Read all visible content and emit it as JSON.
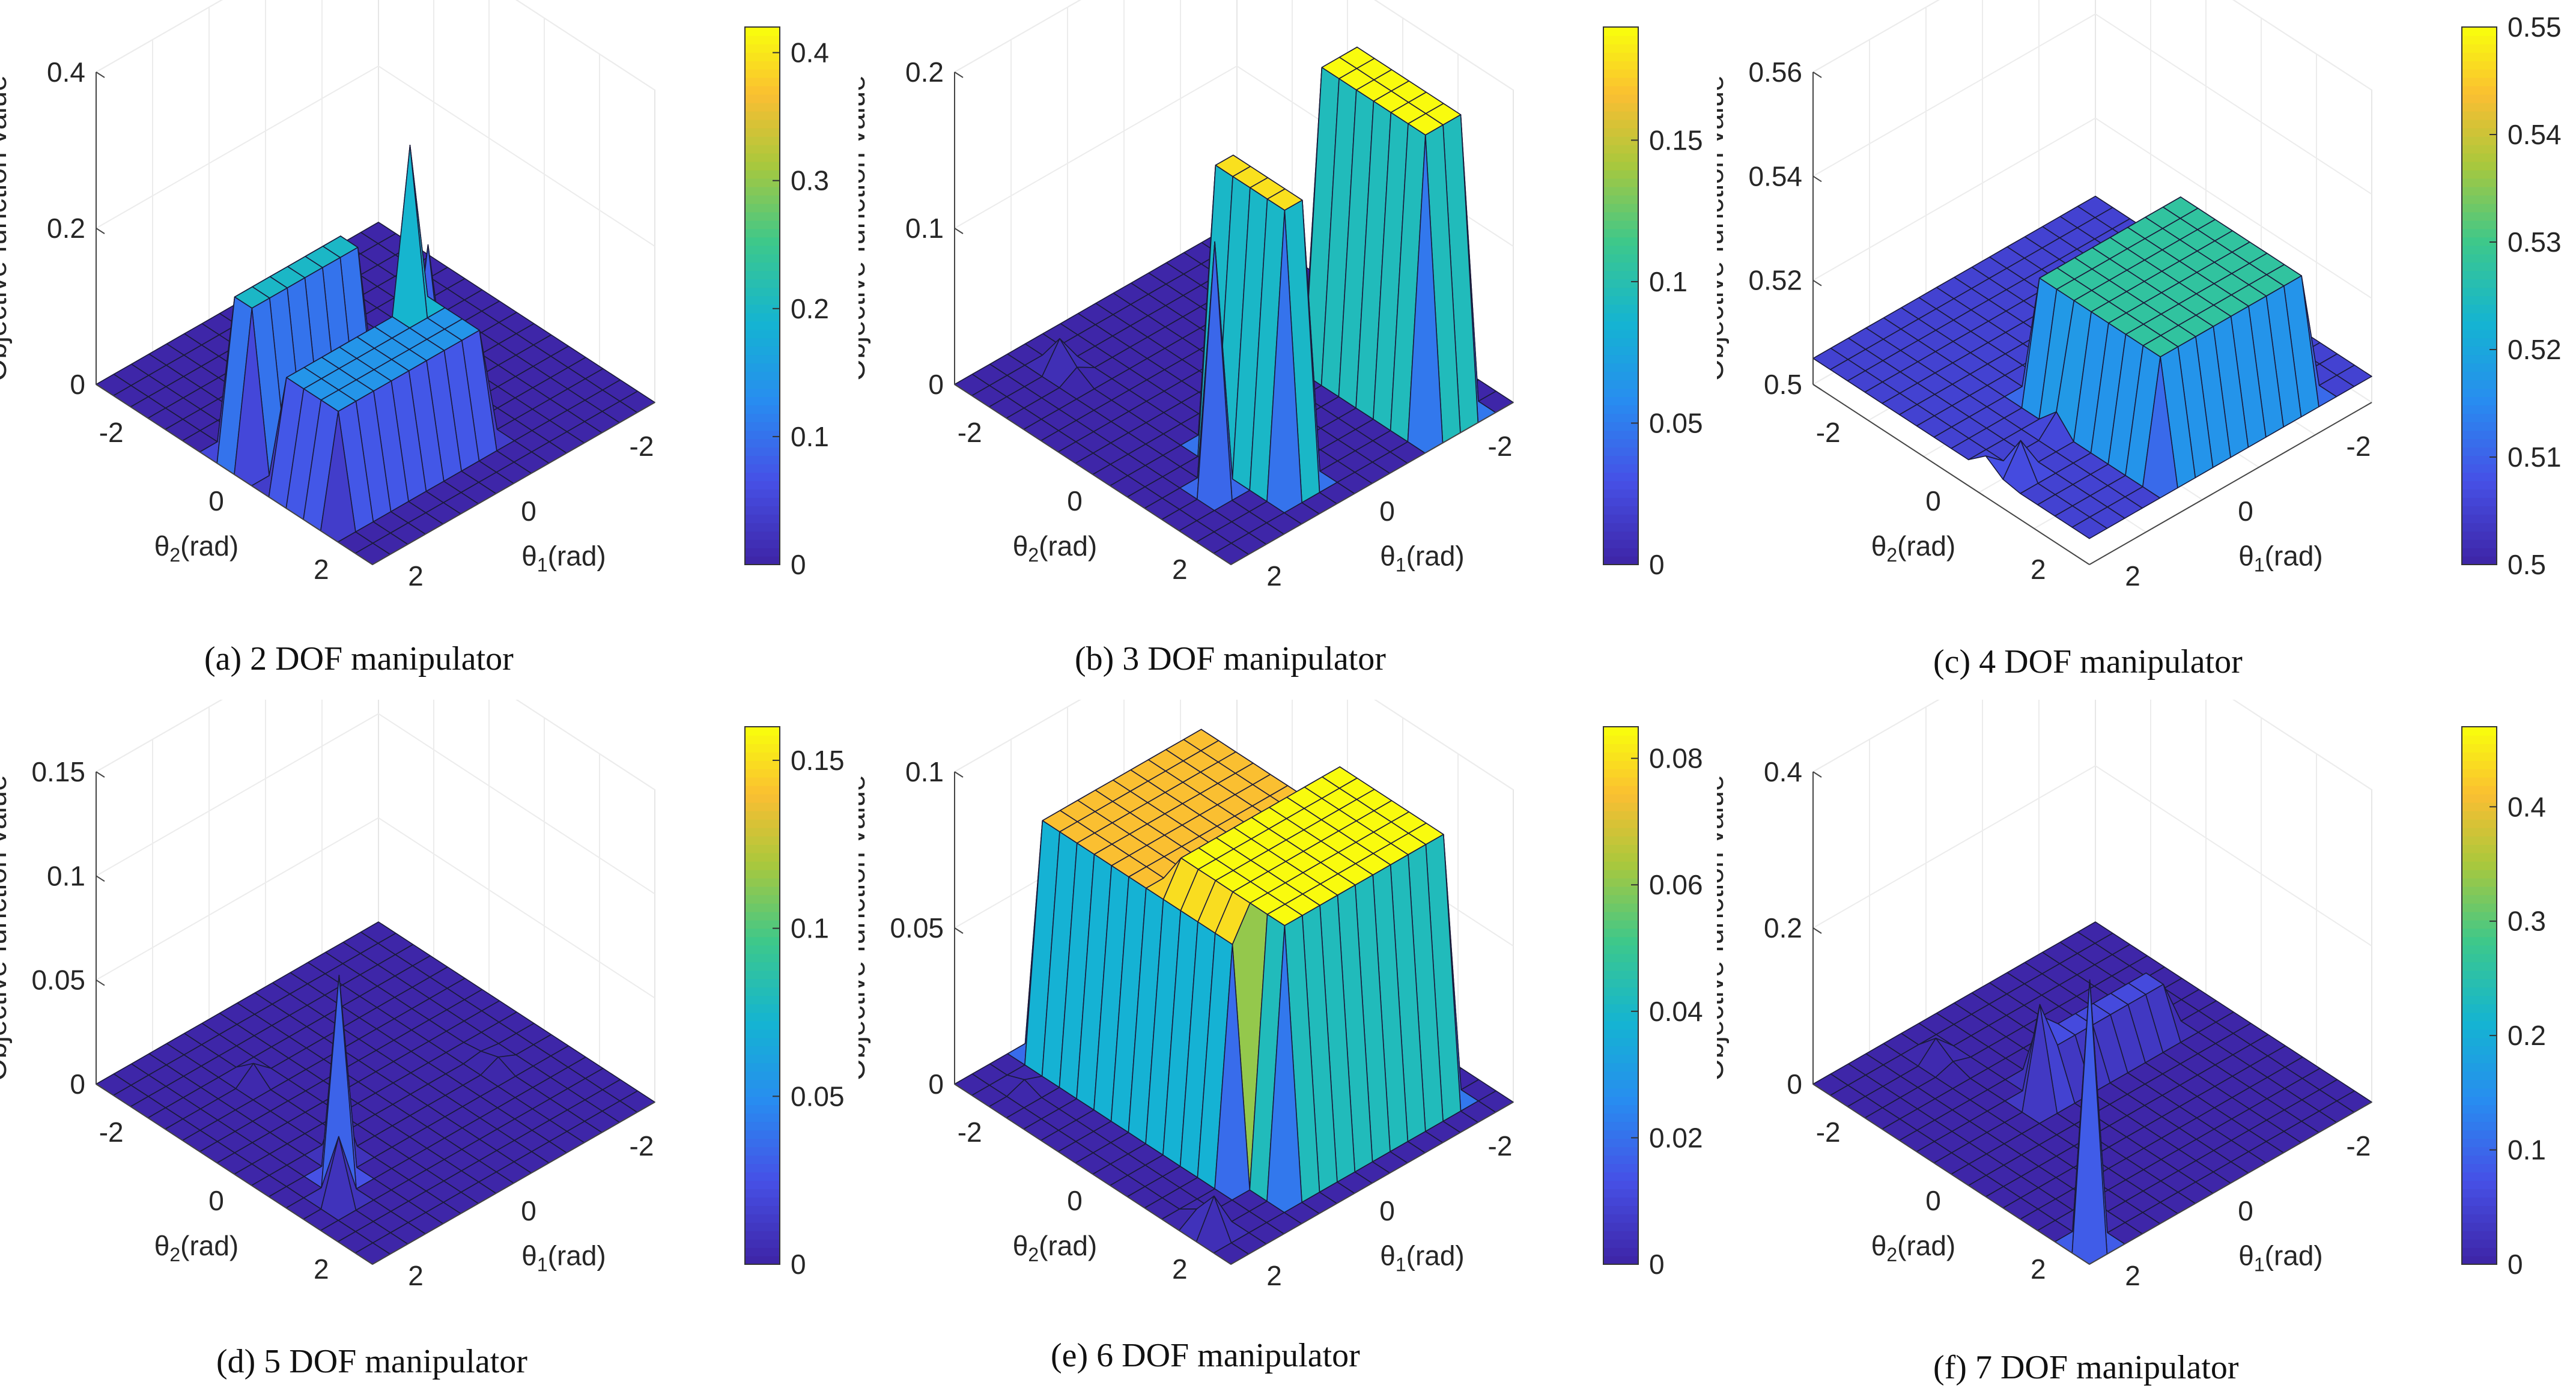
{
  "figure": {
    "colors": {
      "low": "#3b24c8",
      "high": "#f9f51c"
    },
    "axis_labels": {
      "z": "Objective function value",
      "theta2": "θ2(rad)",
      "theta1": "θ1(rad)"
    }
  },
  "chart_data": [
    {
      "type": "surface3d",
      "caption": "(a) 2 DOF manipulator",
      "zlabel": "Objective function value",
      "xlabel": "θ1(rad)",
      "ylabel": "θ2(rad)",
      "zlim": [
        0,
        0.4
      ],
      "zticks": [
        "0",
        "0.2",
        "0.4"
      ],
      "xticks": [
        "2",
        "0",
        "-2"
      ],
      "yticks": [
        "-2",
        "0",
        "2"
      ],
      "colorbar": {
        "min": 0,
        "max": 0.42,
        "ticks": [
          "0",
          "0.1",
          "0.2",
          "0.3",
          "0.4"
        ]
      },
      "base_value": 0,
      "plateaus": [
        {
          "u": [
            0.15,
            0.42
          ],
          "v": [
            0.05,
            0.62
          ],
          "value": 0.14
        },
        {
          "u": [
            0.5,
            0.58
          ],
          "v": [
            0.05,
            0.45
          ],
          "value": 0.2
        }
      ],
      "peaks": [
        {
          "u": 0.38,
          "v": 0.5,
          "value": 0.39
        },
        {
          "u": 0.3,
          "v": 0.42,
          "value": 0.24
        },
        {
          "u": 0.42,
          "v": 0.62,
          "value": 0.3
        },
        {
          "u": 0.18,
          "v": 0.3,
          "value": 0.12
        }
      ]
    },
    {
      "type": "surface3d",
      "caption": "(b) 3 DOF manipulator",
      "zlabel": "Objective function value",
      "xlabel": "θ1(rad)",
      "ylabel": "θ2(rad)",
      "zlim": [
        0,
        0.2
      ],
      "zticks": [
        "0",
        "0.1",
        "0.2"
      ],
      "xticks": [
        "2",
        "0",
        "-2"
      ],
      "yticks": [
        "-2",
        "0",
        "2"
      ],
      "colorbar": {
        "min": 0,
        "max": 0.19,
        "ticks": [
          "0",
          "0.05",
          "0.1",
          "0.15"
        ]
      },
      "base_value": 0,
      "plateaus": [
        {
          "u": [
            0.1,
            0.4
          ],
          "v": [
            0.3,
            0.42
          ],
          "value": 0.18
        },
        {
          "u": [
            0.05,
            0.45
          ],
          "v": [
            0.72,
            0.88
          ],
          "value": 0.19
        }
      ],
      "peaks": [
        {
          "u": 0.25,
          "v": 0.18,
          "value": 0.19
        },
        {
          "u": 0.55,
          "v": 0.55,
          "value": 0.12
        },
        {
          "u": 0.45,
          "v": 0.48,
          "value": 0.09
        },
        {
          "u": 0.85,
          "v": 0.25,
          "value": 0.04
        }
      ]
    },
    {
      "type": "surface3d",
      "caption": "(c) 4 DOF manipulator",
      "zlabel": "Objective function value",
      "xlabel": "θ1(rad)",
      "ylabel": "θ2(rad)",
      "zlim": [
        0.5,
        0.56
      ],
      "zticks": [
        "0.5",
        "0.52",
        "0.54",
        "0.56"
      ],
      "xticks": [
        "2",
        "0",
        "-2"
      ],
      "yticks": [
        "-2",
        "0",
        "2"
      ],
      "colorbar": {
        "min": 0.5,
        "max": 0.55,
        "ticks": [
          "0.5",
          "0.51",
          "0.52",
          "0.53",
          "0.54",
          "0.55"
        ]
      },
      "base_value": 0.505,
      "plateaus": [
        {
          "u": [
            0.05,
            0.55
          ],
          "v": [
            0.3,
            0.85
          ],
          "value": 0.528
        }
      ],
      "peaks": [
        {
          "u": 0.45,
          "v": 0.35,
          "value": 0.548
        },
        {
          "u": 0.58,
          "v": 0.45,
          "value": 0.539
        },
        {
          "u": 0.4,
          "v": 0.28,
          "value": 0.532
        },
        {
          "u": 0.3,
          "v": 0.05,
          "value": 0.515
        },
        {
          "u": 0.35,
          "v": 0.02,
          "value": 0.515
        }
      ]
    },
    {
      "type": "surface3d",
      "caption": "(d) 5 DOF manipulator",
      "zlabel": "Objective function value",
      "xlabel": "θ1(rad)",
      "ylabel": "θ2(rad)",
      "zlim": [
        0,
        0.15
      ],
      "zticks": [
        "0",
        "0.05",
        "0.1",
        "0.15"
      ],
      "xticks": [
        "2",
        "0",
        "-2"
      ],
      "yticks": [
        "-2",
        "0",
        "2"
      ],
      "colorbar": {
        "min": 0,
        "max": 0.16,
        "ticks": [
          "0",
          "0.05",
          "0.1",
          "0.15"
        ]
      },
      "base_value": 0,
      "plateaus": [],
      "peaks": [
        {
          "u": 0.3,
          "v": 0.2,
          "value": 0.16
        },
        {
          "u": 0.24,
          "v": 0.14,
          "value": 0.05
        },
        {
          "u": 0.36,
          "v": 0.26,
          "value": 0.05
        },
        {
          "u": 0.75,
          "v": 0.3,
          "value": 0.01
        },
        {
          "u": 0.4,
          "v": 0.8,
          "value": 0.01
        }
      ]
    },
    {
      "type": "surface3d",
      "caption": "(e) 6 DOF manipulator",
      "zlabel": "Objective function value",
      "xlabel": "θ1(rad)",
      "ylabel": "θ2(rad)",
      "zlim": [
        0,
        0.1
      ],
      "zticks": [
        "0",
        "0.05",
        "0.1"
      ],
      "xticks": [
        "2",
        "0",
        "-2"
      ],
      "yticks": [
        "-2",
        "0",
        "2"
      ],
      "colorbar": {
        "min": 0,
        "max": 0.085,
        "ticks": [
          "0",
          "0.02",
          "0.04",
          "0.06",
          "0.08"
        ]
      },
      "base_value": 0,
      "plateaus": [
        {
          "u": [
            0.2,
            0.95
          ],
          "v": [
            0.25,
            0.85
          ],
          "value": 0.075
        },
        {
          "u": [
            0.1,
            0.55
          ],
          "v": [
            0.3,
            0.9
          ],
          "value": 0.085
        }
      ],
      "peaks": [
        {
          "u": 0.15,
          "v": 0.05,
          "value": 0.03
        },
        {
          "u": 0.85,
          "v": 0.1,
          "value": 0.01
        }
      ]
    },
    {
      "type": "surface3d",
      "caption": "(f) 7 DOF manipulator",
      "zlabel": "Objective function value",
      "xlabel": "θ1(rad)",
      "ylabel": "θ2(rad)",
      "zlim": [
        0,
        0.4
      ],
      "zticks": [
        "0",
        "0.2",
        "0.4"
      ],
      "xticks": [
        "2",
        "0",
        "-2"
      ],
      "yticks": [
        "-2",
        "0",
        "2"
      ],
      "colorbar": {
        "min": 0,
        "max": 0.47,
        "ticks": [
          "0",
          "0.1",
          "0.2",
          "0.3",
          "0.4"
        ]
      },
      "base_value": 0,
      "plateaus": [
        {
          "u": [
            0.55,
            0.65
          ],
          "v": [
            0.4,
            0.85
          ],
          "value": 0.06
        }
      ],
      "peaks": [
        {
          "u": 0.06,
          "v": 0.05,
          "value": 0.47
        },
        {
          "u": 0.1,
          "v": 0.1,
          "value": 0.15
        },
        {
          "u": 0.55,
          "v": 0.4,
          "value": 0.33
        },
        {
          "u": 0.6,
          "v": 0.45,
          "value": 0.22
        },
        {
          "u": 0.55,
          "v": 0.6,
          "value": 0.14
        },
        {
          "u": 0.85,
          "v": 0.3,
          "value": 0.06
        }
      ]
    }
  ]
}
